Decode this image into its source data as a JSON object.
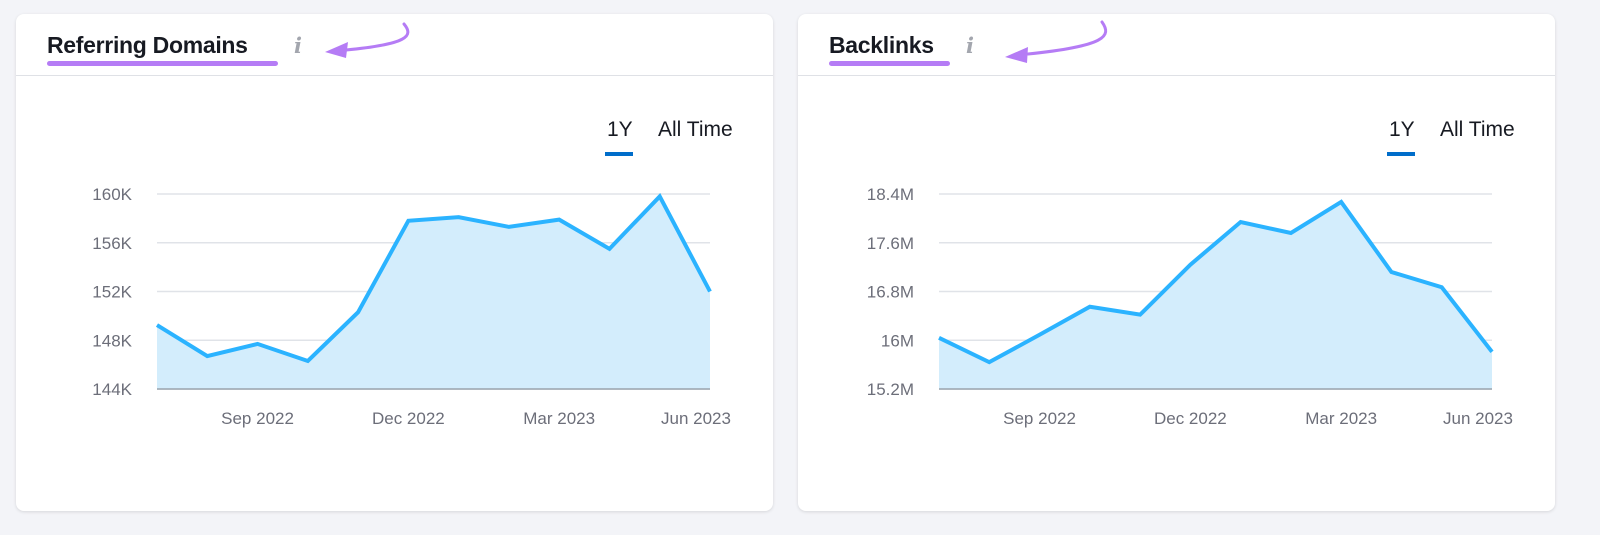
{
  "colors": {
    "line": "#2bb3ff",
    "fill": "#d3edfc",
    "grid": "#e0e3e8",
    "annotation": "#b57cf5",
    "active_tab": "#006dca"
  },
  "cards": [
    {
      "title": "Referring Domains",
      "info_icon": "info-icon",
      "tabs": [
        "1Y",
        "All Time"
      ],
      "active_tab": "1Y"
    },
    {
      "title": "Backlinks",
      "info_icon": "info-icon",
      "tabs": [
        "1Y",
        "All Time"
      ],
      "active_tab": "1Y"
    }
  ],
  "chart_data": [
    {
      "type": "area",
      "title": "Referring Domains",
      "x": [
        "Jul 2022",
        "Aug 2022",
        "Sep 2022",
        "Oct 2022",
        "Nov 2022",
        "Dec 2022",
        "Jan 2023",
        "Feb 2023",
        "Mar 2023",
        "Apr 2023",
        "May 2023",
        "Jun 2023"
      ],
      "x_tick_labels": [
        "Sep 2022",
        "Dec 2022",
        "Mar 2023",
        "Jun 2023"
      ],
      "y_tick_labels": [
        "160K",
        "156K",
        "152K",
        "148K",
        "144K"
      ],
      "values": [
        149250,
        146700,
        147700,
        146300,
        150300,
        157800,
        158100,
        157300,
        157900,
        155500,
        159800,
        152000
      ],
      "ylim": [
        144000,
        160000
      ],
      "grid": true
    },
    {
      "type": "area",
      "title": "Backlinks",
      "x": [
        "Jul 2022",
        "Aug 2022",
        "Sep 2022",
        "Oct 2022",
        "Nov 2022",
        "Dec 2022",
        "Jan 2023",
        "Feb 2023",
        "Mar 2023",
        "Apr 2023",
        "May 2023",
        "Jun 2023"
      ],
      "x_tick_labels": [
        "Sep 2022",
        "Dec 2022",
        "Mar 2023",
        "Jun 2023"
      ],
      "y_tick_labels": [
        "18.4M",
        "17.6M",
        "16.8M",
        "16M",
        "15.2M"
      ],
      "values": [
        16040000,
        15640000,
        16090000,
        16550000,
        16420000,
        17240000,
        17940000,
        17760000,
        18270000,
        17120000,
        16870000,
        15810000
      ],
      "ylim": [
        15200000,
        18400000
      ],
      "grid": true
    }
  ]
}
